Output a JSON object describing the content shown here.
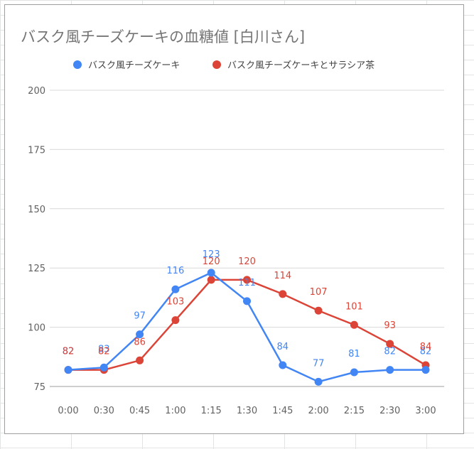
{
  "chart_data": {
    "type": "line",
    "title": "バスク風チーズケーキの血糖値 [白川さん]",
    "categories": [
      "0:00",
      "0:30",
      "0:45",
      "1:00",
      "1:15",
      "1:30",
      "1:45",
      "2:00",
      "2:15",
      "2:30",
      "3:00"
    ],
    "series": [
      {
        "name": "バスク風チーズケーキ",
        "color": "#4285f4",
        "values": [
          82,
          83,
          97,
          116,
          123,
          111,
          84,
          77,
          81,
          82,
          82
        ]
      },
      {
        "name": "バスク風チーズケーキとサラシア茶",
        "color": "#db4437",
        "values": [
          82,
          82,
          86,
          103,
          120,
          120,
          114,
          107,
          101,
          93,
          84
        ]
      }
    ],
    "yticks": [
      75,
      100,
      125,
      150,
      175,
      200
    ],
    "ylim": [
      75,
      200
    ],
    "xlabel": "",
    "ylabel": "",
    "legend": "top"
  }
}
